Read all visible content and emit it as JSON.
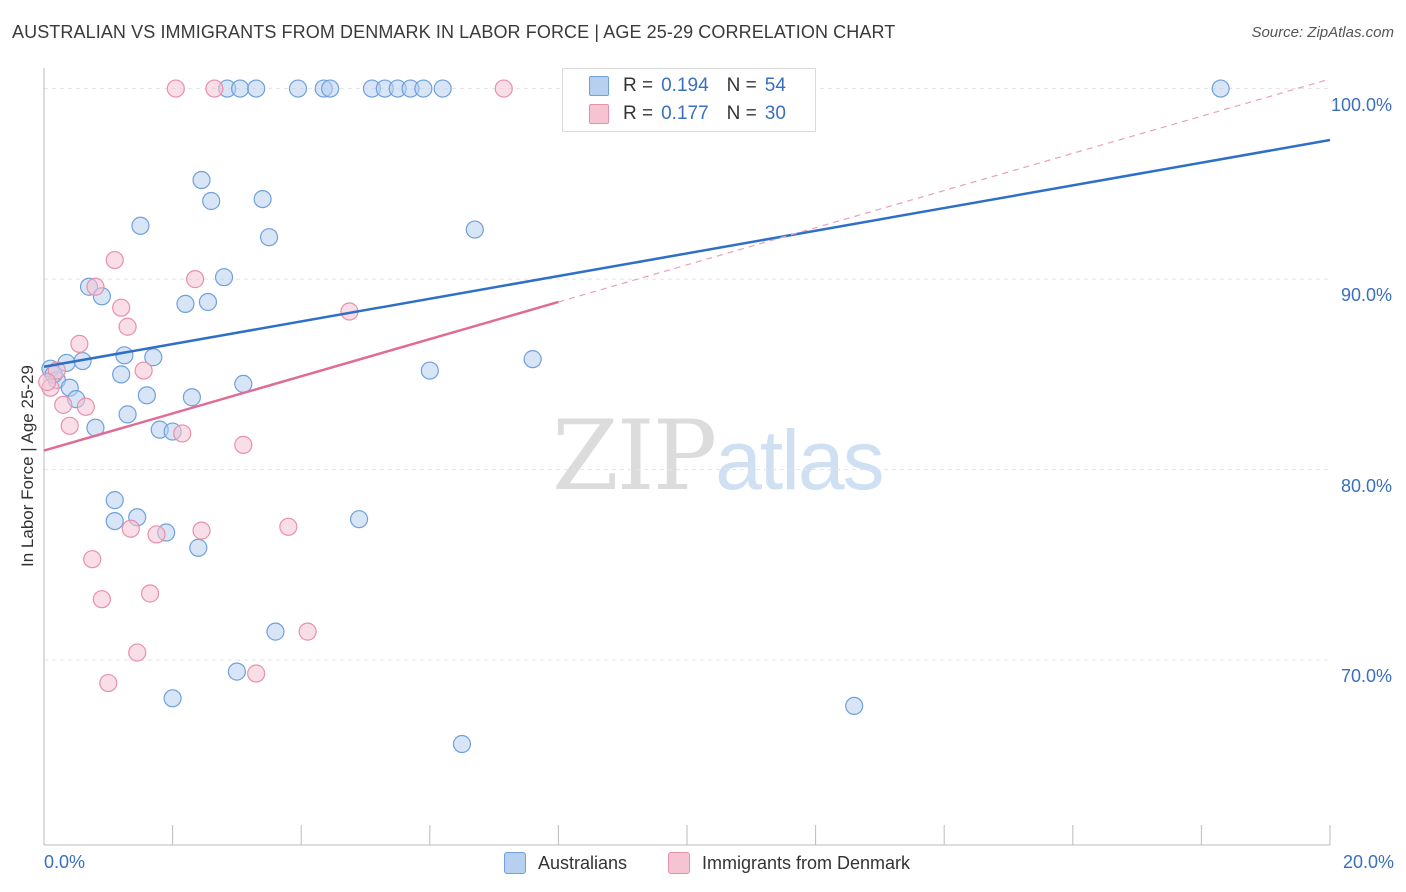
{
  "chart_data": {
    "type": "scatter",
    "title": "AUSTRALIAN VS IMMIGRANTS FROM DENMARK IN LABOR FORCE | AGE 25-29 CORRELATION CHART",
    "source": "Source: ZipAtlas.com",
    "ylabel": "In Labor Force | Age 25-29",
    "xlim": [
      0,
      20
    ],
    "ylim": [
      60.3,
      101.5
    ],
    "x_tick_labels": [
      "0.0%",
      "20.0%"
    ],
    "y_ticks": [
      {
        "value": 100,
        "label": "100.0%"
      },
      {
        "value": 90,
        "label": "90.0%"
      },
      {
        "value": 80,
        "label": "80.0%"
      },
      {
        "value": 70,
        "label": "70.0%"
      }
    ],
    "watermark": {
      "part1": "ZIP",
      "part2": "atlas"
    },
    "legend": [
      {
        "r_label": "R =",
        "r": "0.194",
        "n_label": "N =",
        "n": "54"
      },
      {
        "r_label": "R =",
        "r": "0.177",
        "n_label": "N =",
        "n": "30"
      }
    ],
    "series": [
      {
        "name": "Australians",
        "color": "#6fa0dc",
        "fill": "#b7d0ef",
        "trend": {
          "x0": 0,
          "y0": 85.4,
          "x1": 20,
          "y1": 97.3,
          "dashed_to": null
        },
        "points": [
          [
            0.1,
            85.3
          ],
          [
            0.2,
            84.7
          ],
          [
            0.35,
            85.6
          ],
          [
            0.4,
            84.3
          ],
          [
            0.5,
            83.7
          ],
          [
            0.6,
            85.7
          ],
          [
            0.7,
            89.6
          ],
          [
            0.8,
            82.2
          ],
          [
            0.9,
            89.1
          ],
          [
            1.1,
            77.3
          ],
          [
            1.1,
            78.4
          ],
          [
            1.2,
            85.0
          ],
          [
            1.25,
            86.0
          ],
          [
            1.3,
            82.9
          ],
          [
            1.45,
            77.5
          ],
          [
            1.5,
            92.8
          ],
          [
            1.6,
            83.9
          ],
          [
            1.7,
            85.9
          ],
          [
            1.8,
            82.1
          ],
          [
            1.9,
            76.7
          ],
          [
            2.0,
            82.0
          ],
          [
            2.0,
            68.0
          ],
          [
            2.2,
            88.7
          ],
          [
            2.3,
            83.8
          ],
          [
            2.4,
            75.9
          ],
          [
            2.45,
            95.2
          ],
          [
            2.55,
            88.8
          ],
          [
            2.6,
            94.1
          ],
          [
            2.8,
            90.1
          ],
          [
            2.85,
            100.0
          ],
          [
            3.0,
            69.4
          ],
          [
            3.05,
            100.0
          ],
          [
            3.1,
            84.5
          ],
          [
            3.3,
            100.0
          ],
          [
            3.4,
            94.2
          ],
          [
            3.5,
            92.2
          ],
          [
            3.6,
            71.5
          ],
          [
            3.95,
            100.0
          ],
          [
            4.35,
            100.0
          ],
          [
            4.45,
            100.0
          ],
          [
            4.9,
            77.4
          ],
          [
            5.1,
            100.0
          ],
          [
            5.3,
            100.0
          ],
          [
            5.5,
            100.0
          ],
          [
            5.7,
            100.0
          ],
          [
            5.9,
            100.0
          ],
          [
            6.0,
            85.2
          ],
          [
            6.2,
            100.0
          ],
          [
            6.5,
            65.6
          ],
          [
            6.7,
            92.6
          ],
          [
            7.6,
            85.8
          ],
          [
            12.6,
            67.6
          ],
          [
            18.3,
            100.0
          ],
          [
            0.15,
            85.0
          ]
        ]
      },
      {
        "name": "Immigrants from Denmark",
        "color": "#e890aa",
        "fill": "#f6c3d3",
        "trend": {
          "x0": 0,
          "y0": 81.0,
          "x1": 8.0,
          "y1": 88.8,
          "dashed_to": {
            "x": 20,
            "y": 100.5
          }
        },
        "points": [
          [
            0.1,
            84.3
          ],
          [
            0.2,
            85.2
          ],
          [
            0.3,
            83.4
          ],
          [
            0.4,
            82.3
          ],
          [
            0.55,
            86.6
          ],
          [
            0.65,
            83.3
          ],
          [
            0.75,
            75.3
          ],
          [
            0.8,
            89.6
          ],
          [
            0.9,
            73.2
          ],
          [
            1.0,
            68.8
          ],
          [
            1.1,
            91.0
          ],
          [
            1.2,
            88.5
          ],
          [
            1.3,
            87.5
          ],
          [
            1.35,
            76.9
          ],
          [
            1.45,
            70.4
          ],
          [
            1.55,
            85.2
          ],
          [
            1.65,
            73.5
          ],
          [
            1.75,
            76.6
          ],
          [
            2.05,
            100.0
          ],
          [
            2.15,
            81.9
          ],
          [
            2.35,
            90.0
          ],
          [
            2.45,
            76.8
          ],
          [
            2.65,
            100.0
          ],
          [
            3.1,
            81.3
          ],
          [
            3.3,
            69.3
          ],
          [
            3.8,
            77.0
          ],
          [
            4.1,
            71.5
          ],
          [
            4.75,
            88.3
          ],
          [
            7.15,
            100.0
          ],
          [
            0.05,
            84.6
          ]
        ]
      }
    ]
  }
}
